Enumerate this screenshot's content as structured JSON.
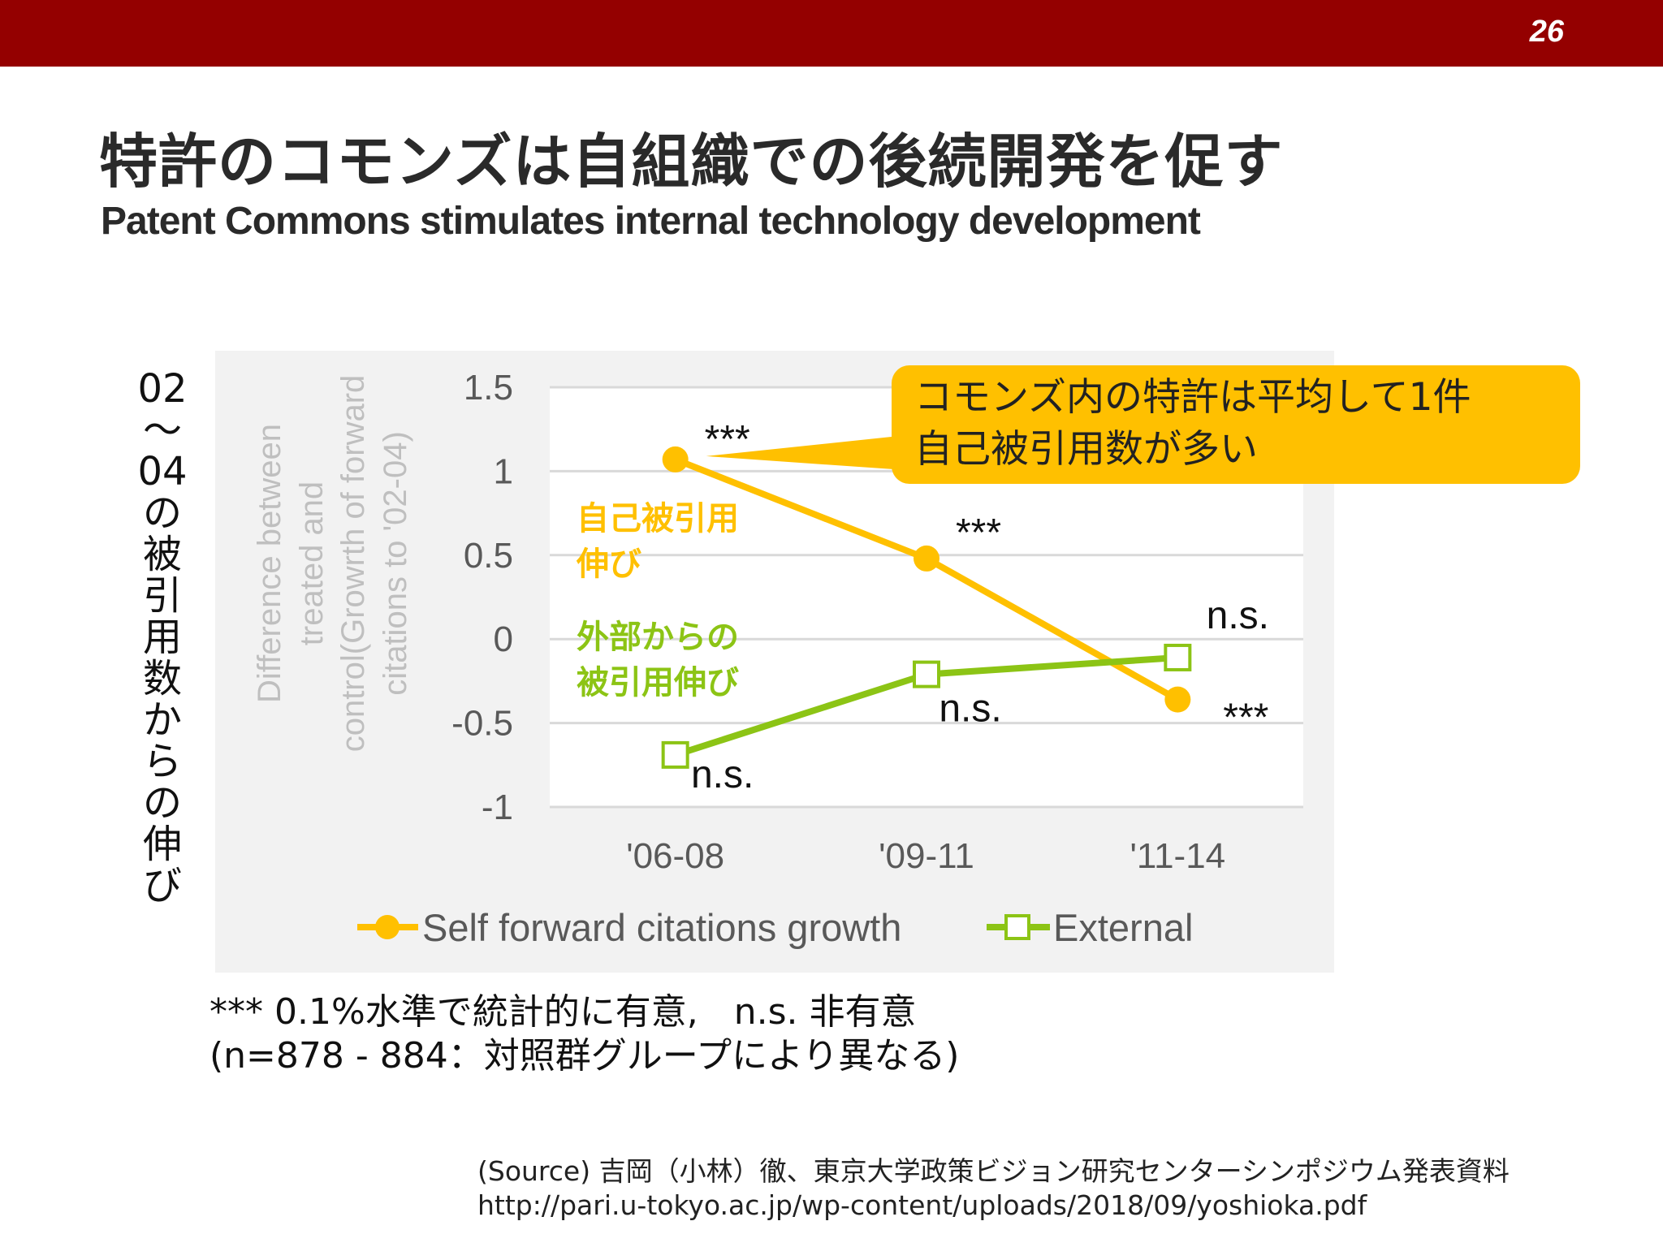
{
  "page_number": "26",
  "title_ja": "特許のコモンズは自組織での後続開発を促す",
  "title_en": "Patent Commons stimulates internal technology development",
  "vertical_label": [
    "02",
    "〜",
    "04",
    "の",
    "被",
    "引",
    "用",
    "数",
    "か",
    "ら",
    "の",
    "伸",
    "び"
  ],
  "callout": {
    "line1": "コモンズ内の特許は平均して1件",
    "line2": "自己被引用数が多い"
  },
  "inline_labels": {
    "self": [
      "自己被引用",
      "伸び"
    ],
    "external": [
      "外部からの",
      "被引用伸び"
    ]
  },
  "footnote": {
    "line1": "*** 0.1%水準で統計的に有意,　n.s. 非有意",
    "line2": "(n=878 - 884：対照群グループにより異なる)"
  },
  "source": {
    "line1": "(Source) 吉岡（小林）徹、東京大学政策ビジョン研究センターシンポジウム発表資料",
    "line2": "http://pari.u-tokyo.ac.jp/wp-content/uploads/2018/09/yoshioka.pdf"
  },
  "colors": {
    "header": "#940000",
    "self": "#ffc000",
    "external": "#8cc415",
    "self_label": "#ffc000",
    "external_label": "#8cc415"
  },
  "chart_data": {
    "type": "line",
    "categories": [
      "'06-08",
      "'09-11",
      "'11-14"
    ],
    "ylabel": [
      "Difference between",
      "treated and",
      "control(Growrth of forward",
      "citations to '02-04)"
    ],
    "ylim": [
      -1,
      1.5
    ],
    "yticks": [
      1.5,
      1,
      0.5,
      0,
      -0.5,
      -1
    ],
    "ytick_labels": [
      "1.5",
      "1",
      "0.5",
      "0",
      "-0.5",
      "-1"
    ],
    "grid": true,
    "legend_position": "bottom",
    "series": [
      {
        "name": "Self forward citations growth",
        "values": [
          1.07,
          0.48,
          -0.36
        ],
        "marker": "circle",
        "significance": [
          "***",
          "***",
          "***"
        ]
      },
      {
        "name": "External",
        "values": [
          -0.69,
          -0.21,
          -0.11
        ],
        "marker": "square-open",
        "significance": [
          "n.s.",
          "n.s.",
          "n.s."
        ]
      }
    ]
  }
}
